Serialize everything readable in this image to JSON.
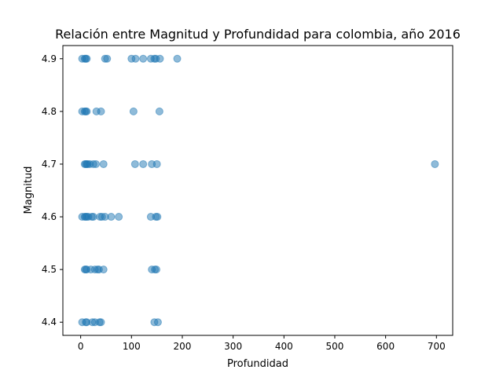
{
  "chart_data": {
    "type": "scatter",
    "title": "Relación entre Magnitud y Profundidad para colombia, año 2016",
    "xlabel": "Profundidad",
    "ylabel": "Magnitud",
    "xlim": [
      -35,
      732
    ],
    "ylim": [
      4.375,
      4.925
    ],
    "xticks": [
      0,
      100,
      200,
      300,
      400,
      500,
      600,
      700
    ],
    "yticks": [
      4.4,
      4.5,
      4.6,
      4.7,
      4.8,
      4.9
    ],
    "xtick_labels": [
      "0",
      "100",
      "200",
      "300",
      "400",
      "500",
      "600",
      "700"
    ],
    "ytick_labels": [
      "4.4",
      "4.5",
      "4.6",
      "4.7",
      "4.8",
      "4.9"
    ],
    "grid": false,
    "legend": false,
    "marker_color": "#1f77b4",
    "marker_alpha": 0.5,
    "points": [
      {
        "x": 3,
        "y": 4.9
      },
      {
        "x": 8,
        "y": 4.9
      },
      {
        "x": 10,
        "y": 4.9
      },
      {
        "x": 12,
        "y": 4.9
      },
      {
        "x": 48,
        "y": 4.9
      },
      {
        "x": 52,
        "y": 4.9
      },
      {
        "x": 100,
        "y": 4.9
      },
      {
        "x": 108,
        "y": 4.9
      },
      {
        "x": 123,
        "y": 4.9
      },
      {
        "x": 138,
        "y": 4.9
      },
      {
        "x": 145,
        "y": 4.9
      },
      {
        "x": 148,
        "y": 4.9
      },
      {
        "x": 156,
        "y": 4.9
      },
      {
        "x": 190,
        "y": 4.9
      },
      {
        "x": 3,
        "y": 4.8
      },
      {
        "x": 8,
        "y": 4.8
      },
      {
        "x": 10,
        "y": 4.8
      },
      {
        "x": 12,
        "y": 4.8
      },
      {
        "x": 31,
        "y": 4.8
      },
      {
        "x": 40,
        "y": 4.8
      },
      {
        "x": 104,
        "y": 4.8
      },
      {
        "x": 155,
        "y": 4.8
      },
      {
        "x": 8,
        "y": 4.7
      },
      {
        "x": 10,
        "y": 4.7
      },
      {
        "x": 12,
        "y": 4.7
      },
      {
        "x": 14,
        "y": 4.7
      },
      {
        "x": 18,
        "y": 4.7
      },
      {
        "x": 25,
        "y": 4.7
      },
      {
        "x": 30,
        "y": 4.7
      },
      {
        "x": 45,
        "y": 4.7
      },
      {
        "x": 107,
        "y": 4.7
      },
      {
        "x": 123,
        "y": 4.7
      },
      {
        "x": 140,
        "y": 4.7
      },
      {
        "x": 150,
        "y": 4.7
      },
      {
        "x": 697,
        "y": 4.7
      },
      {
        "x": 3,
        "y": 4.6
      },
      {
        "x": 8,
        "y": 4.6
      },
      {
        "x": 10,
        "y": 4.6
      },
      {
        "x": 12,
        "y": 4.6
      },
      {
        "x": 15,
        "y": 4.6
      },
      {
        "x": 22,
        "y": 4.6
      },
      {
        "x": 25,
        "y": 4.6
      },
      {
        "x": 38,
        "y": 4.6
      },
      {
        "x": 42,
        "y": 4.6
      },
      {
        "x": 48,
        "y": 4.6
      },
      {
        "x": 60,
        "y": 4.6
      },
      {
        "x": 75,
        "y": 4.6
      },
      {
        "x": 138,
        "y": 4.6
      },
      {
        "x": 148,
        "y": 4.6
      },
      {
        "x": 151,
        "y": 4.6
      },
      {
        "x": 8,
        "y": 4.5
      },
      {
        "x": 10,
        "y": 4.5
      },
      {
        "x": 12,
        "y": 4.5
      },
      {
        "x": 20,
        "y": 4.5
      },
      {
        "x": 28,
        "y": 4.5
      },
      {
        "x": 33,
        "y": 4.5
      },
      {
        "x": 36,
        "y": 4.5
      },
      {
        "x": 45,
        "y": 4.5
      },
      {
        "x": 140,
        "y": 4.5
      },
      {
        "x": 146,
        "y": 4.5
      },
      {
        "x": 149,
        "y": 4.5
      },
      {
        "x": 3,
        "y": 4.4
      },
      {
        "x": 10,
        "y": 4.4
      },
      {
        "x": 12,
        "y": 4.4
      },
      {
        "x": 23,
        "y": 4.4
      },
      {
        "x": 28,
        "y": 4.4
      },
      {
        "x": 37,
        "y": 4.4
      },
      {
        "x": 40,
        "y": 4.4
      },
      {
        "x": 145,
        "y": 4.4
      },
      {
        "x": 152,
        "y": 4.4
      }
    ]
  }
}
